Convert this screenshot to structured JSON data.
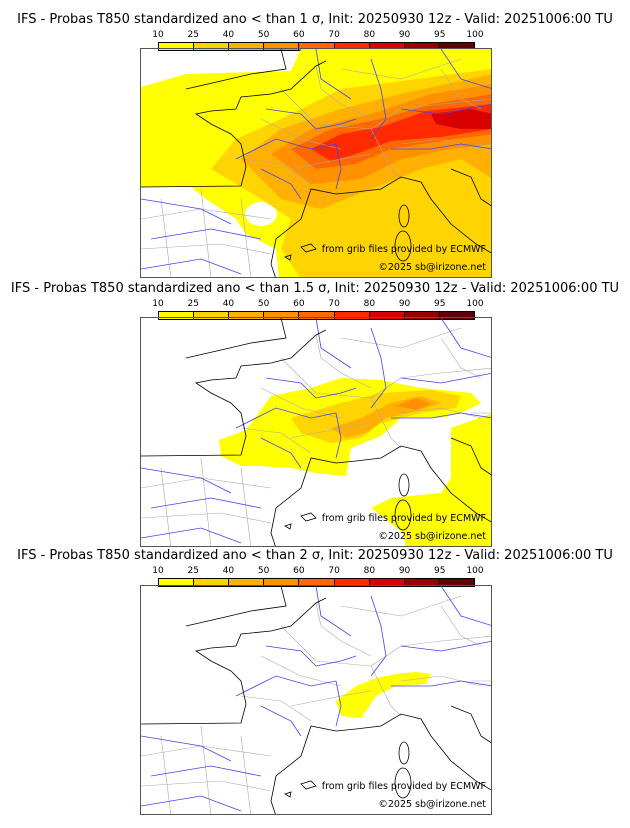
{
  "colorbar": {
    "labels": [
      "10",
      "25",
      "40",
      "50",
      "60",
      "70",
      "80",
      "90",
      "95",
      "100"
    ],
    "colors": [
      "#ffff00",
      "#ffd400",
      "#ffb000",
      "#ff9000",
      "#ff6800",
      "#ff2a00",
      "#d80000",
      "#980000",
      "#600000"
    ]
  },
  "panels": [
    {
      "title": "IFS - Probas T850  standardized ano < than 1 σ, Init: 20250930 12z - Valid: 20251006:00 TU"
    },
    {
      "title": "IFS - Probas T850  standardized ano < than 1.5 σ, Init: 20250930 12z - Valid: 20251006:00 TU"
    },
    {
      "title": "IFS - Probas T850  standardized ano < than 2 σ, Init: 20250930 12z - Valid: 20251006:00 TU"
    }
  ],
  "credits": {
    "source": "from grib files provided by ECMWF",
    "copyright": "©2025 sb@irizone.net"
  }
}
